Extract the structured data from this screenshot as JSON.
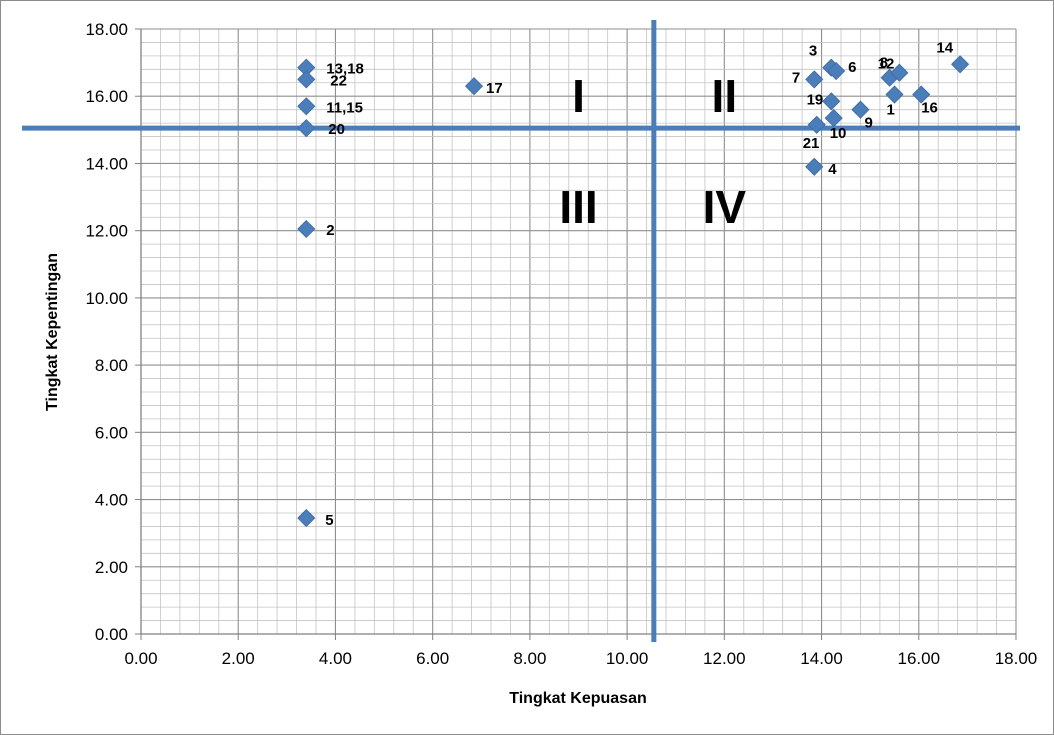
{
  "chart_data": {
    "type": "scatter",
    "title": "",
    "xlabel": "Tingkat Kepuasan",
    "ylabel": "Tingkat Kepentingan",
    "xlim": [
      0,
      18
    ],
    "ylim": [
      0,
      18
    ],
    "x_ticks": [
      "0.00",
      "2.00",
      "4.00",
      "6.00",
      "8.00",
      "10.00",
      "12.00",
      "14.00",
      "16.00",
      "18.00"
    ],
    "y_ticks": [
      "0.00",
      "2.00",
      "4.00",
      "6.00",
      "8.00",
      "10.00",
      "12.00",
      "14.00",
      "16.00",
      "18.00"
    ],
    "grid": true,
    "legend": "none",
    "marker": "diamond",
    "marker_color": "#4a7ebb",
    "divider_color": "#4a7ebb",
    "divider_x": 10.55,
    "divider_y": 15.05,
    "quadrant_labels": [
      {
        "label": "I",
        "x": 9.0,
        "y": 16.0
      },
      {
        "label": "II",
        "x": 12.0,
        "y": 16.0
      },
      {
        "label": "III",
        "x": 9.0,
        "y": 12.7
      },
      {
        "label": "IV",
        "x": 12.0,
        "y": 12.7
      }
    ],
    "points": [
      {
        "label": "1",
        "x": 15.5,
        "y": 16.05
      },
      {
        "label": "2",
        "x": 3.4,
        "y": 12.05
      },
      {
        "label": "3",
        "x": 14.2,
        "y": 16.85
      },
      {
        "label": "4",
        "x": 13.85,
        "y": 13.9
      },
      {
        "label": "5",
        "x": 3.4,
        "y": 3.45
      },
      {
        "label": "6",
        "x": 14.3,
        "y": 16.75
      },
      {
        "label": "7",
        "x": 13.85,
        "y": 16.5
      },
      {
        "label": "8",
        "x": 15.4,
        "y": 16.55
      },
      {
        "label": "9",
        "x": 14.8,
        "y": 15.6
      },
      {
        "label": "10",
        "x": 14.25,
        "y": 15.35
      },
      {
        "label": "11,15",
        "x": 3.4,
        "y": 15.7
      },
      {
        "label": "12",
        "x": 15.6,
        "y": 16.7
      },
      {
        "label": "13,18",
        "x": 3.4,
        "y": 16.85
      },
      {
        "label": "14",
        "x": 16.85,
        "y": 16.95
      },
      {
        "label": "16",
        "x": 16.05,
        "y": 16.05
      },
      {
        "label": "17",
        "x": 6.85,
        "y": 16.3
      },
      {
        "label": "19",
        "x": 14.2,
        "y": 15.85
      },
      {
        "label": "20",
        "x": 3.4,
        "y": 15.05
      },
      {
        "label": "21",
        "x": 13.9,
        "y": 15.15
      },
      {
        "label": "22",
        "x": 3.4,
        "y": 16.5
      }
    ]
  }
}
